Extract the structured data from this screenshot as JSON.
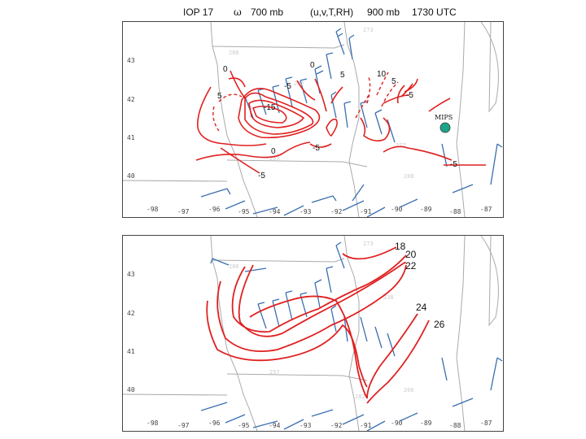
{
  "header": {
    "case": "IOP 17",
    "symbol": "ω",
    "level1": "700 mb",
    "vars": "(u,v,T,RH)",
    "level2": "900 mb",
    "time": "1730 UTC"
  },
  "axes": {
    "latitudes": [
      "43",
      "42",
      "41",
      "40"
    ],
    "longitudes": [
      "-98",
      "-97",
      "-96",
      "-95",
      "-94",
      "-93",
      "-92",
      "-91",
      "-90",
      "-89",
      "-88",
      "-87"
    ]
  },
  "top_panel": {
    "contour_labels": [
      "0",
      "5",
      "-5",
      "-15",
      "0",
      "5",
      "10",
      "5",
      "-5",
      "-5",
      "0",
      "-5",
      "-5"
    ],
    "station": {
      "label": "MIPS",
      "color": "#1aa58a"
    }
  },
  "bottom_panel": {
    "contour_labels": [
      "18",
      "20",
      "22",
      "24",
      "26"
    ]
  },
  "colors": {
    "contour": "#e02020",
    "barb": "#3a6fb0",
    "border": "#999999"
  }
}
